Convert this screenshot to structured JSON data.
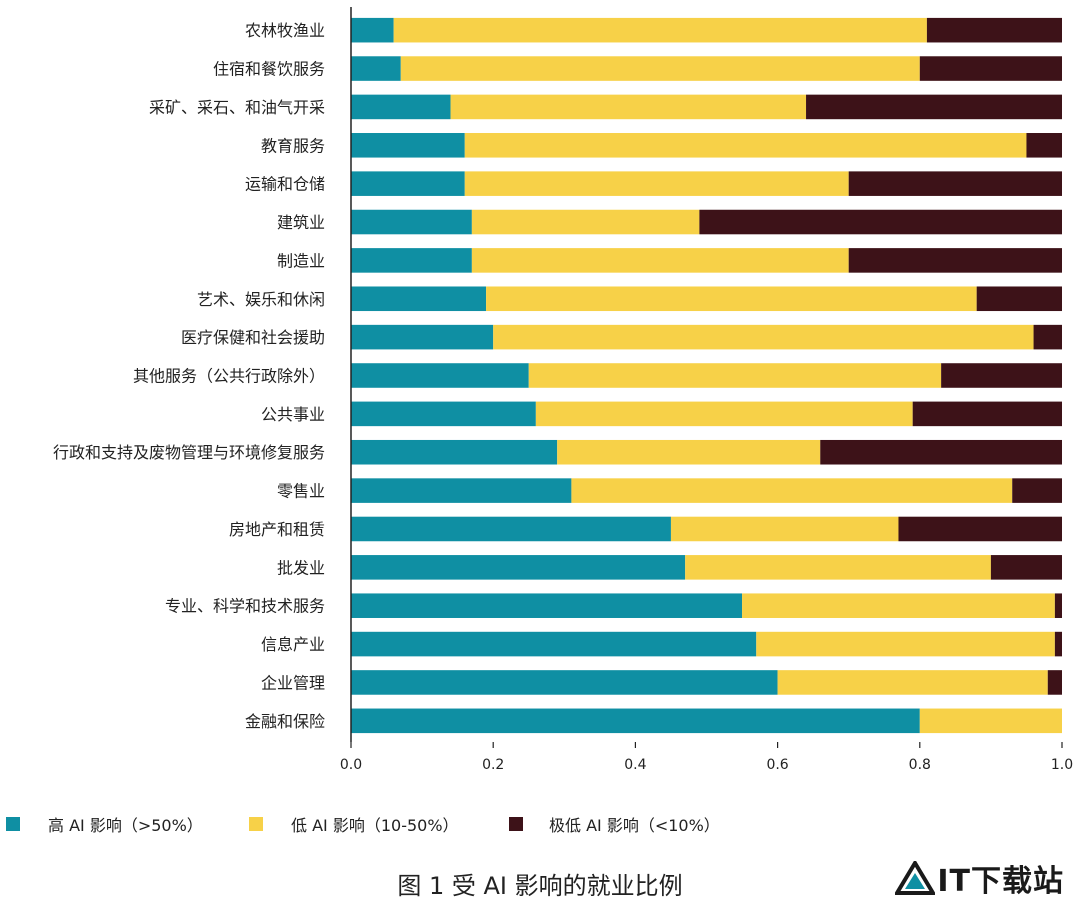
{
  "chart_data": {
    "type": "bar",
    "orientation": "horizontal",
    "stacked": true,
    "categories": [
      "农林牧渔业",
      "住宿和餐饮服务",
      "采矿、采石、和油气开采",
      "教育服务",
      "运输和仓储",
      "建筑业",
      "制造业",
      "艺术、娱乐和休闲",
      "医疗保健和社会援助",
      "其他服务（公共行政除外）",
      "公共事业",
      "行政和支持及废物管理与环境修复服务",
      "零售业",
      "房地产和租赁",
      "批发业",
      "专业、科学和技术服务",
      "信息产业",
      "企业管理",
      "金融和保险"
    ],
    "series": [
      {
        "name": "高 AI 影响（>50%）",
        "color": "#0f8fa3",
        "values": [
          0.06,
          0.07,
          0.14,
          0.16,
          0.16,
          0.17,
          0.17,
          0.19,
          0.2,
          0.25,
          0.26,
          0.29,
          0.31,
          0.45,
          0.47,
          0.55,
          0.57,
          0.6,
          0.8
        ]
      },
      {
        "name": "低 AI 影响（10-50%）",
        "color": "#f7d148",
        "values": [
          0.75,
          0.73,
          0.5,
          0.79,
          0.54,
          0.32,
          0.53,
          0.69,
          0.76,
          0.58,
          0.53,
          0.37,
          0.62,
          0.32,
          0.43,
          0.44,
          0.42,
          0.38,
          0.2
        ]
      },
      {
        "name": "极低 AI 影响（<10%）",
        "color": "#3d1218",
        "values": [
          0.19,
          0.2,
          0.36,
          0.05,
          0.3,
          0.51,
          0.3,
          0.12,
          0.04,
          0.17,
          0.21,
          0.34,
          0.07,
          0.23,
          0.1,
          0.01,
          0.01,
          0.02,
          0.0
        ]
      }
    ],
    "xlim": [
      0,
      1
    ],
    "xticks": [
      "0.0",
      "0.2",
      "0.4",
      "0.6",
      "0.8",
      "1.0"
    ],
    "grid": false,
    "legend_position": "bottom"
  },
  "caption": "图 1 受 AI 影响的就业比例",
  "logo_text": "IT下载站"
}
